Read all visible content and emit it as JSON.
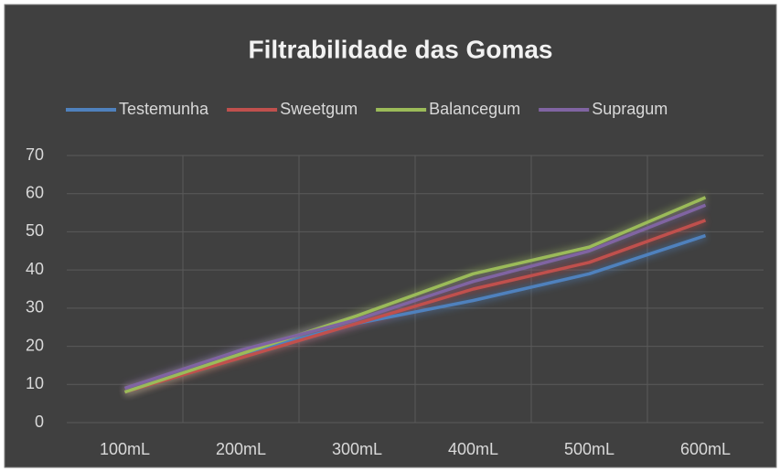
{
  "chart_data": {
    "type": "line",
    "title": "Filtrabilidade das Gomas",
    "categories": [
      "100mL",
      "200mL",
      "300mL",
      "400mL",
      "500mL",
      "600mL"
    ],
    "series": [
      {
        "name": "Testemunha",
        "color": "#4f81bd",
        "values": [
          8,
          18,
          26,
          32,
          39,
          49
        ]
      },
      {
        "name": "Sweetgum",
        "color": "#c0504d",
        "values": [
          8,
          17,
          26,
          35,
          42,
          53
        ]
      },
      {
        "name": "Balancegum",
        "color": "#9bbb59",
        "values": [
          8,
          18,
          28,
          39,
          46,
          59
        ]
      },
      {
        "name": "Supragum",
        "color": "#8064a2",
        "values": [
          9,
          19,
          27,
          37,
          45,
          57
        ]
      }
    ],
    "ylim": [
      0,
      70
    ],
    "yticks": [
      0,
      10,
      20,
      30,
      40,
      50,
      60,
      70
    ],
    "grid": true,
    "legend": "top"
  }
}
